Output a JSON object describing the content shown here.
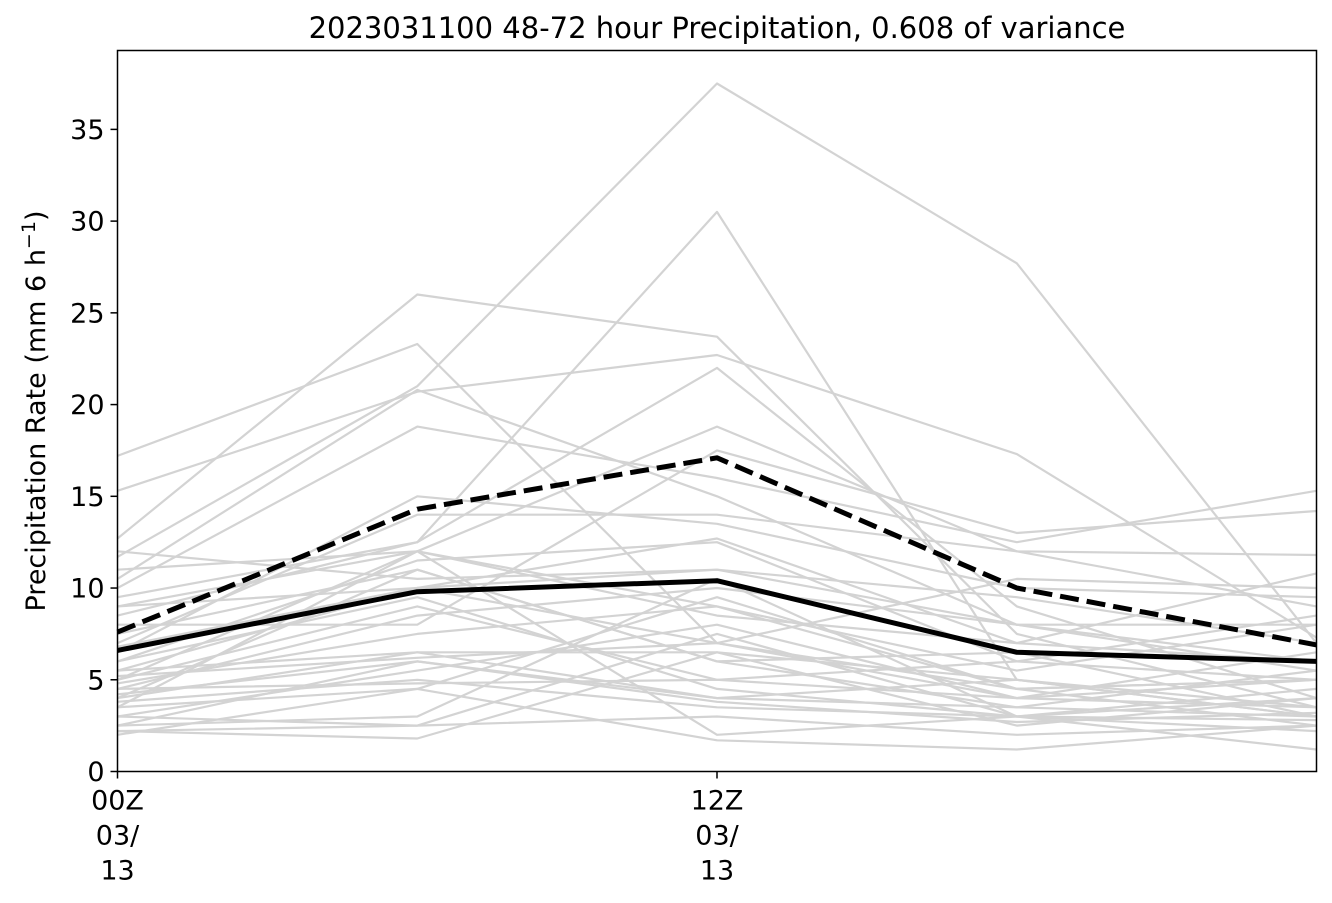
{
  "chart_data": {
    "type": "line",
    "title": "2023031100 48-72 hour Precipitation, 0.608 of variance",
    "ylabel": "Precipitation Rate (mm 6 h",
    "ylabel_sup": "−1",
    "ylabel_end": ")",
    "xlabel": "",
    "x": [
      0,
      1,
      2,
      3,
      4
    ],
    "xlim": [
      0,
      4
    ],
    "ylim": [
      0,
      39.3
    ],
    "yticks": [
      0,
      5,
      10,
      15,
      20,
      25,
      30,
      35
    ],
    "xticks": [
      {
        "x": 0,
        "lines": [
          "00Z",
          "03/",
          "13"
        ]
      },
      {
        "x": 2,
        "lines": [
          "12Z",
          "03/",
          "13"
        ]
      }
    ],
    "grid": false,
    "legend": "none",
    "colors": {
      "member": "#d3d3d3",
      "mean": "#000000",
      "upper": "#000000"
    },
    "series": [
      {
        "style": "solid-bold",
        "values": [
          6.6,
          9.8,
          10.4,
          6.5,
          6.0
        ]
      },
      {
        "style": "dashed-bold",
        "values": [
          7.6,
          14.3,
          17.1,
          10.0,
          6.9
        ]
      }
    ],
    "members": [
      [
        17.2,
        23.3,
        7.0,
        4.0,
        5.0
      ],
      [
        15.3,
        20.7,
        22.7,
        17.3,
        7.3
      ],
      [
        12.7,
        26.0,
        23.7,
        7.5,
        3.5
      ],
      [
        11.7,
        21.0,
        37.5,
        27.7,
        7.0
      ],
      [
        10.5,
        20.8,
        15.0,
        8.0,
        5.5
      ],
      [
        10.0,
        18.8,
        16.0,
        12.5,
        15.3
      ],
      [
        9.5,
        12.5,
        22.0,
        9.0,
        4.0
      ],
      [
        9.0,
        12.0,
        18.8,
        12.0,
        9.0
      ],
      [
        8.5,
        12.5,
        30.5,
        5.0,
        3.0
      ],
      [
        8.0,
        8.0,
        17.5,
        13.0,
        14.2
      ],
      [
        7.0,
        14.0,
        14.0,
        12.0,
        11.8
      ],
      [
        6.5,
        15.0,
        13.5,
        10.0,
        9.5
      ],
      [
        6.0,
        11.5,
        12.5,
        6.0,
        8.5
      ],
      [
        5.5,
        10.0,
        7.0,
        10.5,
        10.0
      ],
      [
        5.0,
        12.0,
        8.5,
        7.0,
        10.8
      ],
      [
        5.0,
        9.0,
        5.0,
        6.0,
        5.0
      ],
      [
        4.5,
        8.5,
        10.0,
        8.0,
        6.0
      ],
      [
        4.5,
        4.8,
        5.0,
        4.0,
        6.5
      ],
      [
        4.0,
        11.0,
        6.0,
        3.5,
        5.5
      ],
      [
        4.0,
        6.5,
        6.5,
        5.0,
        3.0
      ],
      [
        3.5,
        4.5,
        9.5,
        4.5,
        5.0
      ],
      [
        3.5,
        12.0,
        2.0,
        3.0,
        2.8
      ],
      [
        3.0,
        5.5,
        8.0,
        4.0,
        3.5
      ],
      [
        3.0,
        2.5,
        7.5,
        3.0,
        4.5
      ],
      [
        2.5,
        6.0,
        4.0,
        3.5,
        3.0
      ],
      [
        2.5,
        3.0,
        10.5,
        3.0,
        2.2
      ],
      [
        2.2,
        1.8,
        6.5,
        2.5,
        4.0
      ],
      [
        2.2,
        2.5,
        3.0,
        2.0,
        2.5
      ],
      [
        2.0,
        4.5,
        1.7,
        1.2,
        2.5
      ],
      [
        11.0,
        12.0,
        9.0,
        5.5,
        8.0
      ],
      [
        9.0,
        10.0,
        11.0,
        8.0,
        8.0
      ],
      [
        7.5,
        11.0,
        6.0,
        6.5,
        3.0
      ],
      [
        6.0,
        9.5,
        4.5,
        3.0,
        4.0
      ],
      [
        5.5,
        6.5,
        4.0,
        5.0,
        3.5
      ],
      [
        4.8,
        7.5,
        9.0,
        4.5,
        2.5
      ],
      [
        3.8,
        5.0,
        3.5,
        3.0,
        1.2
      ],
      [
        12.0,
        10.5,
        11.0,
        9.5,
        7.0
      ],
      [
        6.8,
        10.0,
        12.7,
        7.0,
        6.0
      ],
      [
        5.2,
        6.2,
        7.0,
        4.5,
        5.0
      ],
      [
        4.2,
        6.0,
        3.8,
        2.7,
        3.2
      ]
    ]
  }
}
